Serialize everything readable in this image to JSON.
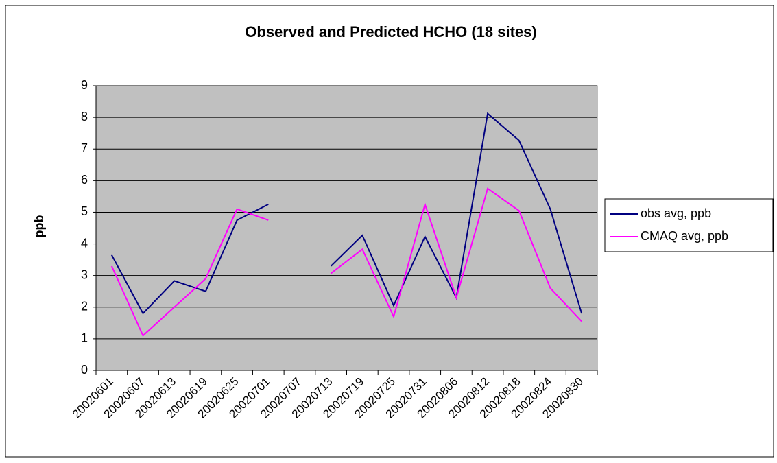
{
  "chart_data": {
    "type": "line",
    "title": "Observed and Predicted HCHO (18 sites)",
    "y_label": "ppb",
    "categories": [
      "20020601",
      "20020607",
      "20020613",
      "20020619",
      "20020625",
      "20020701",
      "20020707",
      "20020713",
      "20020719",
      "20020725",
      "20020731",
      "20020806",
      "20020812",
      "20020818",
      "20020824",
      "20020830"
    ],
    "series": [
      {
        "name": "obs avg, ppb",
        "color": "#000080",
        "values": [
          3.65,
          1.8,
          2.83,
          2.5,
          4.75,
          5.25,
          null,
          3.3,
          4.27,
          2.05,
          4.23,
          2.3,
          8.12,
          7.27,
          5.1,
          1.8
        ]
      },
      {
        "name": "CMAQ avg, ppb",
        "color": "#ff00ff",
        "values": [
          3.3,
          1.1,
          2.0,
          2.9,
          5.1,
          4.75,
          null,
          3.07,
          3.83,
          1.7,
          5.25,
          2.3,
          5.75,
          5.05,
          2.6,
          1.55
        ]
      }
    ],
    "ylim": [
      0,
      9
    ],
    "yticks": [
      0,
      1,
      2,
      3,
      4,
      5,
      6,
      7,
      8,
      9
    ],
    "grid": true,
    "legend": "right"
  }
}
